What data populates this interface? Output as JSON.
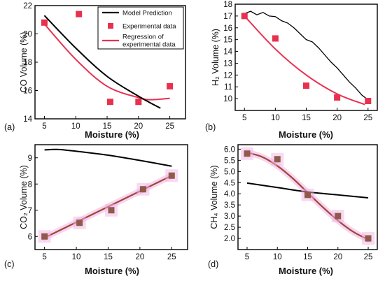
{
  "colors": {
    "model": "#000000",
    "experimental": "#e8304f",
    "regression": "#e8304f",
    "bottom_points": "#8f5a4a",
    "bottom_fit": "#a04838",
    "halo": "#f2b3e6"
  },
  "legend": {
    "model": "Model Prediction",
    "experimental": "Experimental data",
    "regression_line1": "Regression of",
    "regression_line2": "experimental data"
  },
  "chart_data": [
    {
      "panel": "(a)",
      "type": "scatter",
      "xlabel": "Moisture (%)",
      "ylabel": "CO Volume (%)",
      "xlim": [
        3.5,
        27.5
      ],
      "ylim": [
        14,
        22
      ],
      "xticks": [
        5,
        10,
        15,
        20,
        25
      ],
      "yticks": [
        14,
        16,
        18,
        20,
        22
      ],
      "series": [
        {
          "name": "Model Prediction",
          "kind": "line",
          "x": [
            5,
            10,
            15,
            20,
            23.5
          ],
          "y": [
            21.3,
            19.0,
            17.0,
            15.6,
            14.75
          ]
        },
        {
          "name": "Experimental data",
          "kind": "points",
          "x": [
            5,
            10.5,
            15.5,
            20,
            25
          ],
          "y": [
            20.8,
            21.4,
            15.2,
            15.2,
            16.3
          ]
        },
        {
          "name": "Regression of experimental data",
          "kind": "line",
          "x": [
            5,
            10,
            15,
            20,
            22,
            25
          ],
          "y": [
            20.7,
            18.2,
            16.3,
            15.5,
            15.35,
            15.45
          ]
        }
      ]
    },
    {
      "panel": "(b)",
      "type": "scatter",
      "xlabel": "Moisture (%)",
      "ylabel": "H₂ Volume (%)",
      "xlim": [
        3.5,
        26.5
      ],
      "ylim": [
        9,
        18
      ],
      "xticks": [
        5,
        10,
        15,
        20,
        25
      ],
      "yticks": [
        10,
        11,
        12,
        13,
        14,
        15,
        16,
        17,
        18
      ],
      "series": [
        {
          "name": "Model Prediction",
          "kind": "line",
          "x": [
            5,
            6,
            7,
            8,
            9,
            10,
            11,
            12,
            13,
            14,
            15,
            16,
            17,
            18,
            19,
            20,
            21,
            22,
            23,
            24,
            25
          ],
          "y": [
            17.2,
            17.4,
            17.1,
            17.3,
            17.0,
            16.95,
            16.6,
            16.4,
            16.0,
            15.5,
            15.0,
            14.8,
            14.3,
            13.7,
            13.1,
            12.6,
            12.0,
            11.4,
            10.9,
            10.3,
            9.9
          ]
        },
        {
          "name": "Experimental data",
          "kind": "points",
          "x": [
            5,
            10,
            15,
            20,
            25
          ],
          "y": [
            17.0,
            15.1,
            11.1,
            10.1,
            9.8
          ]
        },
        {
          "name": "Regression of experimental data",
          "kind": "line",
          "x": [
            5,
            10,
            15,
            20,
            24.5
          ],
          "y": [
            17.0,
            14.2,
            12.0,
            10.4,
            9.5
          ]
        }
      ]
    },
    {
      "panel": "(c)",
      "type": "scatter",
      "xlabel": "Moisture (%)",
      "ylabel": "CO₂ Volume (%)",
      "xlim": [
        3.5,
        27.5
      ],
      "ylim": [
        5.5,
        9.5
      ],
      "xticks": [
        5,
        10,
        15,
        20,
        25
      ],
      "yticks": [
        6,
        7,
        8,
        9
      ],
      "series": [
        {
          "name": "Model Prediction",
          "kind": "line",
          "x": [
            5,
            7,
            10,
            15,
            20,
            25
          ],
          "y": [
            9.3,
            9.32,
            9.25,
            9.1,
            8.9,
            8.68
          ]
        },
        {
          "name": "Experimental data",
          "kind": "points",
          "x": [
            5,
            10.5,
            15.5,
            20.5,
            25
          ],
          "y": [
            6.0,
            6.52,
            7.0,
            7.8,
            8.32
          ]
        },
        {
          "name": "Regression of experimental data",
          "kind": "line",
          "x": [
            5,
            25
          ],
          "y": [
            5.95,
            8.32
          ]
        }
      ]
    },
    {
      "panel": "(d)",
      "type": "scatter",
      "xlabel": "Moisture (%)",
      "ylabel": "CH₄ Volume (%)",
      "xlim": [
        3.5,
        26.5
      ],
      "ylim": [
        1.5,
        6.2
      ],
      "xticks": [
        5,
        10,
        15,
        20,
        25
      ],
      "yticks": [
        2.0,
        2.5,
        3.0,
        3.5,
        4.0,
        4.5,
        5.0,
        5.5,
        6.0
      ],
      "series": [
        {
          "name": "Model Prediction",
          "kind": "line",
          "x": [
            5,
            10,
            15,
            20,
            25
          ],
          "y": [
            4.48,
            4.28,
            4.08,
            3.95,
            3.82
          ]
        },
        {
          "name": "Experimental data",
          "kind": "points",
          "x": [
            5,
            10,
            15,
            20,
            25
          ],
          "y": [
            5.8,
            5.55,
            3.95,
            3.0,
            2.0
          ]
        },
        {
          "name": "Regression of experimental data",
          "kind": "line",
          "x": [
            5,
            7.5,
            10,
            12.5,
            15,
            17.5,
            20,
            22.5,
            25
          ],
          "y": [
            5.85,
            5.65,
            5.25,
            4.7,
            4.05,
            3.4,
            2.8,
            2.3,
            1.95
          ]
        }
      ]
    }
  ]
}
